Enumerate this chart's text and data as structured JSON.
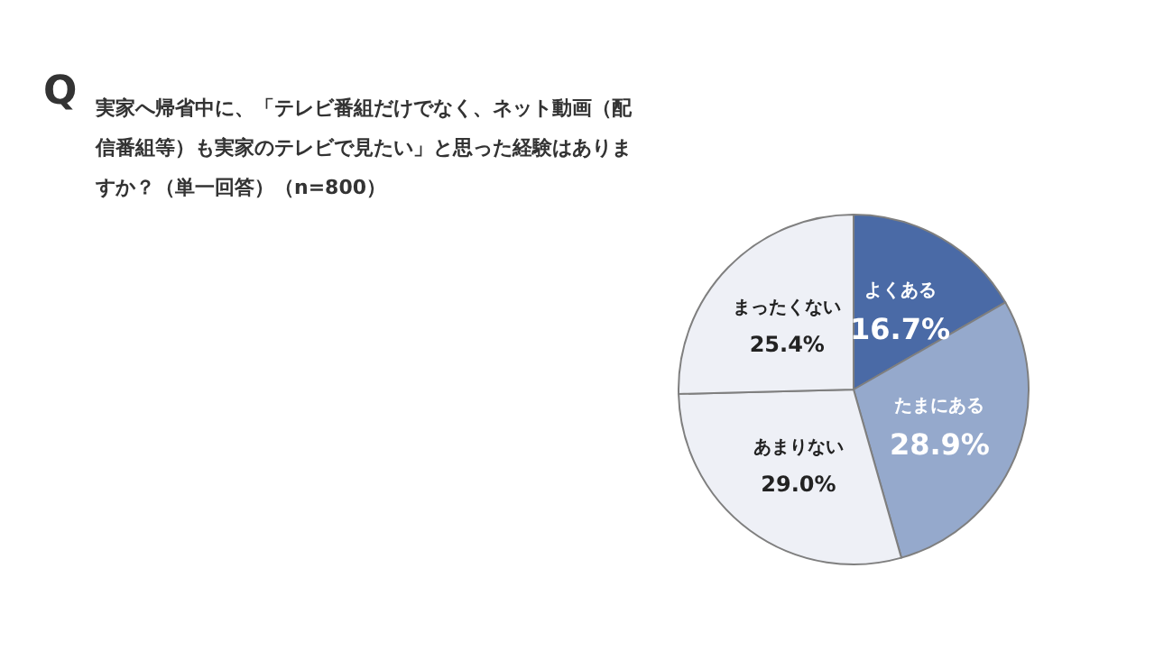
{
  "chart_data": {
    "type": "pie",
    "title": "実家へ帰省中に、「テレビ番組だけでなく、ネット動画（配信番組等）も実家のテレビで見たい」と思った経験はありますか？（単一回答）（n=800）",
    "annotations": [
      "Q"
    ],
    "categories": [
      "よくある",
      "たまにある",
      "あまりない",
      "まったくない"
    ],
    "values": [
      16.7,
      28.9,
      29.0,
      25.4
    ],
    "colors": [
      "#4a6aa6",
      "#95a9cc",
      "#eef0f6",
      "#eef0f6"
    ],
    "value_labels": [
      "16.7%",
      "28.9%",
      "29.0%",
      "25.4%"
    ],
    "legend": false
  }
}
